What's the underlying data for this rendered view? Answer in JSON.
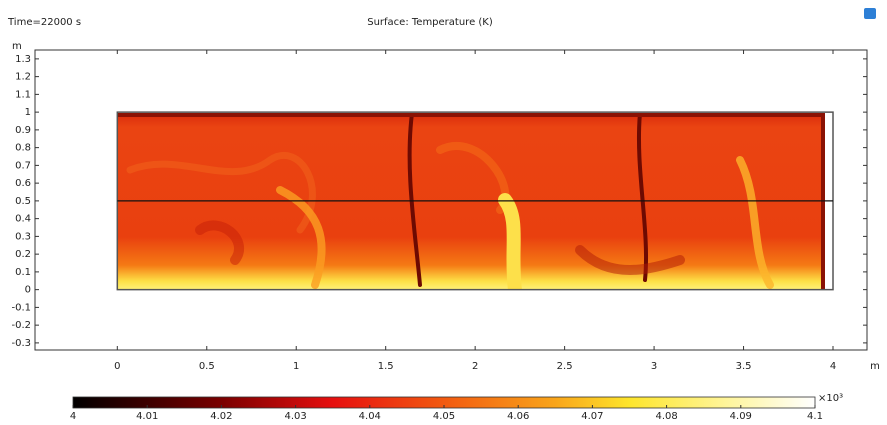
{
  "chart_data": {
    "type": "surface",
    "time_label": "Time=22000 s",
    "title": "Surface: Temperature (K)",
    "x_unit": "m",
    "y_unit": "m",
    "xlim": [
      -0.46,
      4.19
    ],
    "ylim": [
      -0.34,
      1.35
    ],
    "xticks": [
      0,
      0.5,
      1,
      1.5,
      2,
      2.5,
      3,
      3.5,
      4
    ],
    "yticks": [
      1.3,
      1.2,
      1.1,
      1,
      0.9,
      0.8,
      0.7,
      0.6,
      0.5,
      0.4,
      0.3,
      0.2,
      0.1,
      0,
      -0.1,
      -0.2,
      -0.3
    ],
    "domain": {
      "x": [
        0,
        4
      ],
      "y": [
        0,
        1
      ]
    },
    "cut_line_y": 0.5,
    "colorbar": {
      "lim": [
        4,
        4.1
      ],
      "ticks": [
        4,
        4.01,
        4.02,
        4.03,
        4.04,
        4.05,
        4.06,
        4.07,
        4.08,
        4.09,
        4.1
      ],
      "multiplier": "×10³"
    }
  }
}
